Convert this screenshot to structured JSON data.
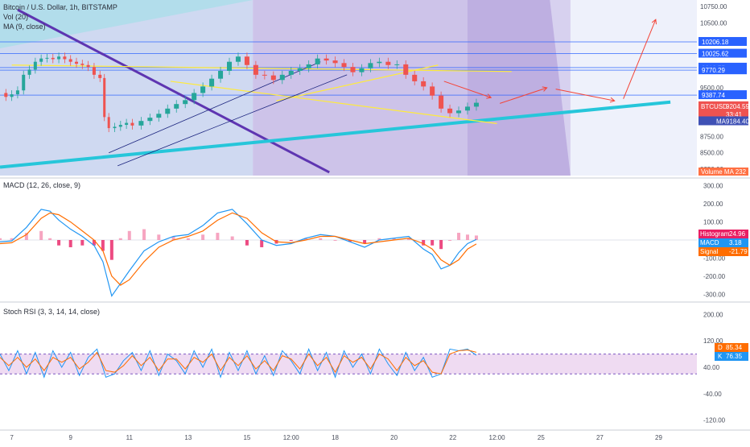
{
  "legends": {
    "price_title": "Bitcoin / U.S. Dollar, 1h, BITSTAMP",
    "vol": "Vol (20)",
    "ma": "MA (9, close)",
    "macd": "MACD (12, 26, close, 9)",
    "stoch": "Stoch RSI (3, 3, 14, 14, close)"
  },
  "colors": {
    "candle_up": "#26a69a",
    "candle_down": "#ef5350",
    "macd_line": "#2196f3",
    "signal_line": "#ff6d00",
    "hist_pos": "#f48fb1",
    "hist_neg": "#e91e63",
    "stoch_k": "#2196f3",
    "stoch_d": "#ff6d00",
    "trend_cyan": "#26c6da",
    "trend_purple": "#5e35b1",
    "trend_yellow": "#ffeb3b",
    "arrow_red": "#f44336",
    "band_fill": "#e1bee7"
  },
  "chart_data": [
    {
      "type": "line",
      "title": "Bitcoin / U.S. Dollar, 1h, BITSTAMP",
      "symbol": "BTCUSD",
      "yticks": [
        "10750.00",
        "10500.00",
        "10000.00",
        "9500.00",
        "8750.00",
        "8500.00",
        "8250.00"
      ],
      "ytick_values": [
        10750,
        10500,
        10000,
        9500,
        8750,
        8500,
        8250
      ],
      "xticks": [
        "7",
        "9",
        "11",
        "13",
        "15",
        "12:00",
        "18",
        "20",
        "22",
        "12:00",
        "25",
        "27",
        "29"
      ],
      "xtick_days": [
        7,
        9,
        11,
        13,
        15,
        16.5,
        18,
        20,
        22,
        23.5,
        25,
        27,
        29
      ],
      "levels": [
        {
          "label": "10206.18",
          "value": 10206.18,
          "color": "#2962ff"
        },
        {
          "label": "10025.62",
          "value": 10025.62,
          "color": "#2962ff"
        },
        {
          "label": "9810.75",
          "value": 9810.75,
          "color": "#2962ff"
        },
        {
          "label": "9770.29",
          "value": 9770.29,
          "color": "#2962ff"
        },
        {
          "label": "9387.74",
          "value": 9387.74,
          "color": "#2962ff"
        }
      ],
      "price_label": {
        "label": "BTCUSD",
        "value": "9204.59",
        "timer": "33:41"
      },
      "ma_label": {
        "label": "MA",
        "value": "9184.40"
      },
      "vol_label": "Volume MA 232",
      "price_series": {
        "x": [
          6.6,
          6.8,
          7.0,
          7.2,
          7.4,
          7.6,
          7.8,
          8.0,
          8.2,
          8.4,
          8.6,
          8.8,
          9.0,
          9.2,
          9.4,
          9.6,
          9.8,
          10.0,
          10.15,
          10.3,
          10.5,
          10.7,
          10.9,
          11.1,
          11.4,
          11.7,
          12.0,
          12.3,
          12.6,
          12.9,
          13.2,
          13.5,
          13.8,
          14.1,
          14.4,
          14.7,
          15.0,
          15.3,
          15.6,
          15.9,
          16.2,
          16.5,
          16.8,
          17.1,
          17.4,
          17.7,
          18.0,
          18.3,
          18.6,
          18.9,
          19.2,
          19.5,
          19.8,
          20.1,
          20.4,
          20.7,
          21.0,
          21.3,
          21.6,
          21.9,
          22.2,
          22.5,
          22.8
        ],
        "y": [
          9420,
          9360,
          9400,
          9460,
          9700,
          9780,
          9900,
          9950,
          9960,
          9940,
          9980,
          9940,
          9900,
          9870,
          9850,
          9820,
          9700,
          9650,
          9050,
          8880,
          8900,
          8930,
          8960,
          8920,
          8990,
          9040,
          9100,
          9180,
          9250,
          9310,
          9420,
          9520,
          9640,
          9760,
          9900,
          9980,
          9850,
          9700,
          9690,
          9620,
          9700,
          9760,
          9800,
          9860,
          9950,
          9920,
          9880,
          9820,
          9740,
          9800,
          9880,
          9900,
          9850,
          9860,
          9700,
          9600,
          9520,
          9380,
          9180,
          9110,
          9150,
          9210,
          9270
        ]
      }
    },
    {
      "type": "line",
      "title": "MACD (12, 26, close, 9)",
      "yticks": [
        "300.00",
        "200.00",
        "100.00",
        "-100.00",
        "-200.00",
        "-300.00"
      ],
      "ytick_values": [
        300,
        200,
        100,
        -100,
        -200,
        -300
      ],
      "labels": [
        {
          "label": "Histogram",
          "value": "24.96",
          "color": "#e91e63"
        },
        {
          "label": "MACD",
          "value": "3.18",
          "color": "#2196f3"
        },
        {
          "label": "Signal",
          "value": "-21.79",
          "color": "#ff6d00"
        }
      ],
      "x": [
        6.6,
        7.0,
        7.5,
        8.0,
        8.3,
        8.6,
        9.0,
        9.4,
        9.8,
        10.1,
        10.4,
        10.7,
        11.0,
        11.5,
        12.0,
        12.5,
        13.0,
        13.5,
        14.0,
        14.5,
        15.0,
        15.5,
        16.0,
        16.5,
        17.0,
        17.5,
        18.0,
        18.5,
        19.0,
        19.5,
        20.0,
        20.5,
        21.0,
        21.3,
        21.6,
        21.9,
        22.2,
        22.5,
        22.8
      ],
      "macd": [
        -10,
        -5,
        70,
        170,
        160,
        110,
        60,
        20,
        -30,
        -120,
        -310,
        -240,
        -170,
        -60,
        -10,
        20,
        30,
        80,
        150,
        170,
        90,
        0,
        -30,
        -20,
        10,
        30,
        20,
        -10,
        -40,
        0,
        10,
        20,
        -50,
        -80,
        -160,
        -140,
        -70,
        -20,
        3
      ],
      "signal": [
        -20,
        -15,
        30,
        120,
        150,
        140,
        100,
        50,
        0,
        -60,
        -200,
        -250,
        -220,
        -120,
        -40,
        0,
        20,
        50,
        110,
        150,
        120,
        40,
        -10,
        -15,
        0,
        20,
        20,
        0,
        -20,
        -10,
        0,
        10,
        -20,
        -50,
        -110,
        -140,
        -110,
        -50,
        -21.79
      ],
      "histogram": [
        10,
        10,
        40,
        50,
        10,
        -30,
        -40,
        -30,
        -30,
        -60,
        -110,
        10,
        50,
        60,
        30,
        20,
        10,
        30,
        40,
        20,
        -30,
        -40,
        -20,
        -5,
        10,
        10,
        0,
        -10,
        -20,
        10,
        10,
        10,
        -30,
        -30,
        -50,
        0,
        40,
        30,
        24.96
      ]
    },
    {
      "type": "line",
      "title": "Stoch RSI (3, 3, 14, 14, close)",
      "yticks": [
        "200.00",
        "120.00",
        "40.00",
        "-40.00",
        "-120.00"
      ],
      "ytick_values": [
        200,
        120,
        40,
        -40,
        -120
      ],
      "band": [
        20,
        80
      ],
      "labels": [
        {
          "label": "D",
          "value": "85.34",
          "color": "#ff6d00"
        },
        {
          "label": "K",
          "value": "76.35",
          "color": "#2196f3"
        }
      ],
      "x": [
        6.6,
        6.9,
        7.2,
        7.5,
        7.8,
        8.1,
        8.4,
        8.7,
        9.0,
        9.3,
        9.6,
        9.9,
        10.2,
        10.5,
        10.8,
        11.1,
        11.4,
        11.7,
        12.0,
        12.3,
        12.6,
        12.9,
        13.2,
        13.5,
        13.8,
        14.1,
        14.4,
        14.7,
        15.0,
        15.3,
        15.6,
        15.9,
        16.2,
        16.5,
        16.8,
        17.1,
        17.4,
        17.7,
        18.0,
        18.3,
        18.6,
        18.9,
        19.2,
        19.5,
        19.8,
        20.1,
        20.4,
        20.7,
        21.0,
        21.3,
        21.6,
        21.9,
        22.2,
        22.5,
        22.8
      ],
      "k": [
        80,
        30,
        90,
        20,
        85,
        10,
        90,
        40,
        85,
        15,
        70,
        95,
        10,
        20,
        60,
        85,
        30,
        90,
        15,
        80,
        60,
        20,
        90,
        40,
        95,
        10,
        85,
        30,
        90,
        20,
        75,
        15,
        90,
        60,
        20,
        95,
        30,
        85,
        10,
        90,
        40,
        80,
        20,
        95,
        50,
        15,
        85,
        30,
        70,
        10,
        20,
        95,
        90,
        95,
        76.35
      ],
      "d": [
        70,
        45,
        70,
        40,
        65,
        30,
        70,
        55,
        70,
        35,
        55,
        85,
        30,
        25,
        45,
        75,
        45,
        70,
        30,
        65,
        65,
        35,
        70,
        55,
        80,
        30,
        70,
        45,
        75,
        35,
        60,
        30,
        75,
        65,
        35,
        80,
        45,
        70,
        25,
        75,
        55,
        70,
        35,
        80,
        65,
        30,
        70,
        45,
        60,
        25,
        20,
        80,
        90,
        92,
        85.34
      ]
    }
  ]
}
